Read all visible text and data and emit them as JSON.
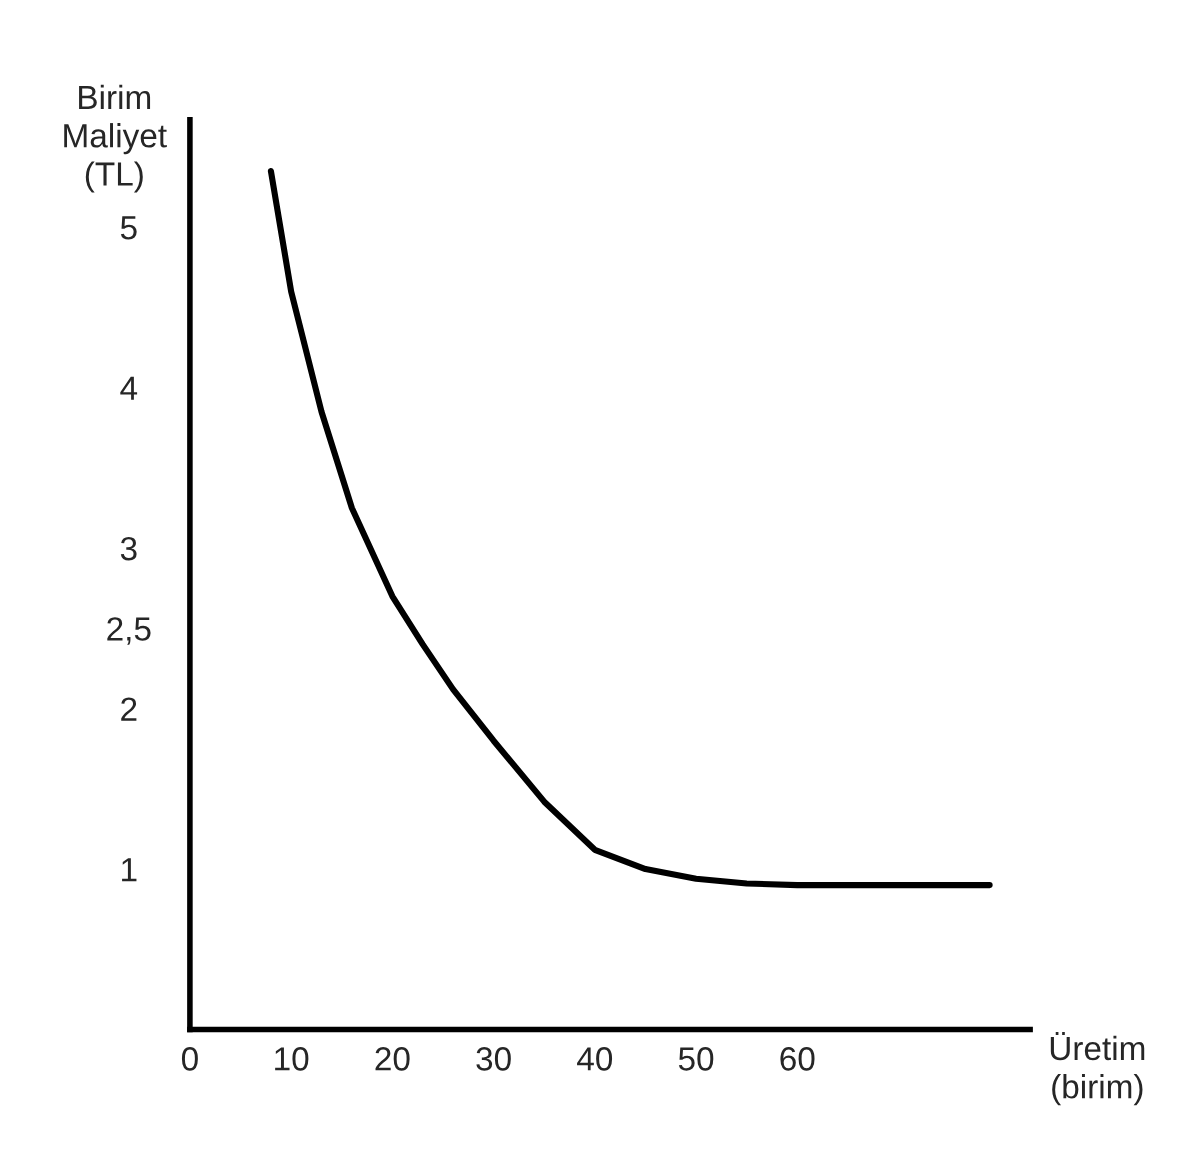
{
  "chart_data": {
    "type": "line",
    "xlabel": "Üretim\n(birim)",
    "ylabel": "Birim\nMaliyet\n(TL)",
    "x": [
      8,
      10,
      13,
      16,
      20,
      23,
      26,
      30,
      35,
      40,
      45,
      50,
      55,
      60,
      65,
      70,
      79
    ],
    "series": [
      {
        "color": "#000000",
        "values": [
          5.35,
          4.6,
          3.85,
          3.25,
          2.7,
          2.4,
          2.12,
          1.8,
          1.42,
          1.12,
          1.0,
          0.94,
          0.91,
          0.9,
          0.9,
          0.9,
          0.9
        ]
      }
    ],
    "xlim": [
      0,
      83
    ],
    "ylim": [
      0,
      5.67
    ],
    "xticks": [
      0,
      10,
      20,
      30,
      40,
      50,
      60
    ],
    "yticks": [
      1,
      2,
      {
        "value": 2.5,
        "label": "2,5"
      },
      3,
      4,
      5
    ],
    "marker": "none",
    "line_style": "solid"
  }
}
